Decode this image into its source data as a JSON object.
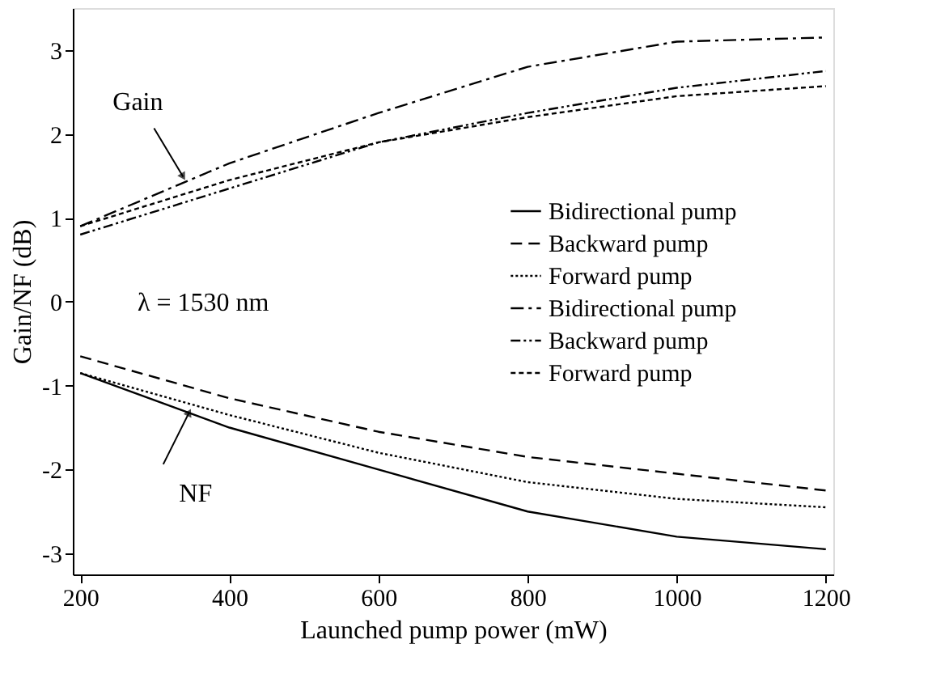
{
  "chart_data": {
    "type": "line",
    "xlabel": "Launched pump power (mW)",
    "ylabel": "Gain/NF (dB)",
    "x": [
      200,
      400,
      600,
      800,
      1000,
      1200
    ],
    "series": [
      {
        "name": "Bidirectional pump",
        "color": "#000000",
        "line_style": "solid",
        "values": [
          -0.85,
          -1.5,
          -2.0,
          -2.5,
          -2.8,
          -2.95
        ]
      },
      {
        "name": "Backward pump",
        "color": "#000000",
        "line_style": "dashed",
        "values": [
          -0.65,
          -1.15,
          -1.55,
          -1.85,
          -2.05,
          -2.25
        ]
      },
      {
        "name": "Forward pump",
        "color": "#000000",
        "line_style": "dotted",
        "values": [
          -0.85,
          -1.35,
          -1.8,
          -2.15,
          -2.35,
          -2.45
        ]
      },
      {
        "name": "Bidirectional pump",
        "color": "#000000",
        "line_style": "dashdot",
        "values": [
          0.9,
          1.65,
          2.25,
          2.8,
          3.1,
          3.15
        ]
      },
      {
        "name": "Backward pump",
        "color": "#000000",
        "line_style": "dashdotdot",
        "values": [
          0.8,
          1.35,
          1.9,
          2.25,
          2.55,
          2.75
        ]
      },
      {
        "name": "Forward pump",
        "color": "#000000",
        "line_style": "shortdash",
        "values": [
          0.9,
          1.45,
          1.9,
          2.2,
          2.45,
          2.57
        ]
      }
    ],
    "xlim": [
      190,
      1210
    ],
    "ylim": [
      -3.25,
      3.5
    ],
    "xticks": [
      200,
      400,
      600,
      800,
      {
        "value": 1000,
        "label": "1000"
      },
      {
        "value": 1200,
        "label": "1200"
      }
    ],
    "yticks": [
      -3,
      -2,
      -1,
      0,
      1,
      2,
      3
    ],
    "grid": false,
    "legend": "right",
    "marker": "none",
    "annotations": [
      {
        "text": "Gain",
        "x": 338,
        "y": 1.49
      },
      {
        "text": "NF",
        "x": 346,
        "y": -1.32
      },
      "λ = 1530 nm"
    ]
  }
}
